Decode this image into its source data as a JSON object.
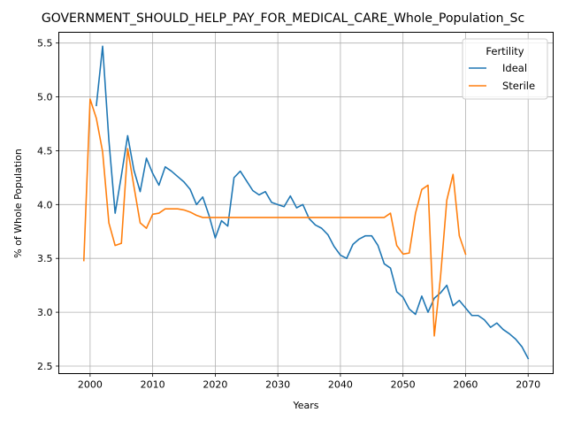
{
  "chart_data": {
    "type": "line",
    "title": "GOVERNMENT_SHOULD_HELP_PAY_FOR_MEDICAL_CARE_Whole_Population_Sc",
    "xlabel": "Years",
    "ylabel": "% of Whole Population",
    "xlim": [
      1995,
      2074
    ],
    "ylim": [
      2.43,
      5.6
    ],
    "xticks": [
      2000,
      2010,
      2020,
      2030,
      2040,
      2050,
      2060,
      2070
    ],
    "yticks": [
      2.5,
      3.0,
      3.5,
      4.0,
      4.5,
      5.0,
      5.5
    ],
    "grid": true,
    "legend": {
      "title": "Fertility",
      "placement": "top-right"
    },
    "series": [
      {
        "name": "Ideal",
        "color": "#1f77b4",
        "x": [
          2001,
          2002,
          2003,
          2004,
          2005,
          2006,
          2007,
          2008,
          2009,
          2010,
          2011,
          2012,
          2013,
          2014,
          2015,
          2016,
          2017,
          2018,
          2019,
          2020,
          2021,
          2022,
          2023,
          2024,
          2025,
          2026,
          2027,
          2028,
          2029,
          2030,
          2031,
          2032,
          2033,
          2034,
          2035,
          2036,
          2037,
          2038,
          2039,
          2040,
          2041,
          2042,
          2043,
          2044,
          2045,
          2046,
          2047,
          2048,
          2049,
          2050,
          2051,
          2052,
          2053,
          2054,
          2055,
          2056,
          2057,
          2058,
          2059,
          2060,
          2061,
          2062,
          2063,
          2064,
          2065,
          2066,
          2067,
          2068,
          2069,
          2070
        ],
        "values": [
          4.92,
          5.47,
          4.6,
          3.92,
          4.27,
          4.64,
          4.32,
          4.12,
          4.43,
          4.29,
          4.18,
          4.35,
          4.31,
          4.26,
          4.21,
          4.14,
          4.0,
          4.07,
          3.9,
          3.69,
          3.85,
          3.8,
          4.25,
          4.31,
          4.22,
          4.13,
          4.09,
          4.12,
          4.02,
          4.0,
          3.98,
          4.08,
          3.97,
          4.0,
          3.87,
          3.81,
          3.78,
          3.72,
          3.61,
          3.53,
          3.5,
          3.63,
          3.68,
          3.71,
          3.71,
          3.62,
          3.45,
          3.41,
          3.19,
          3.14,
          3.03,
          2.98,
          3.15,
          3.0,
          3.13,
          3.18,
          3.25,
          3.06,
          3.11,
          3.04,
          2.97,
          2.97,
          2.93,
          2.86,
          2.9,
          2.84,
          2.8,
          2.75,
          2.68,
          2.57
        ]
      },
      {
        "name": "Sterile",
        "color": "#ff7f0e",
        "x": [
          1999,
          2000,
          2001,
          2002,
          2003,
          2004,
          2005,
          2006,
          2007,
          2008,
          2009,
          2010,
          2011,
          2012,
          2013,
          2014,
          2015,
          2016,
          2017,
          2018,
          2019,
          2020,
          2021,
          2022,
          2023,
          2024,
          2025,
          2026,
          2027,
          2028,
          2029,
          2030,
          2031,
          2032,
          2033,
          2034,
          2035,
          2036,
          2037,
          2038,
          2039,
          2040,
          2041,
          2042,
          2043,
          2044,
          2045,
          2046,
          2047,
          2048,
          2049,
          2050,
          2051,
          2052,
          2053,
          2054,
          2055,
          2056,
          2057,
          2058,
          2059,
          2060
        ],
        "values": [
          3.48,
          4.98,
          4.8,
          4.49,
          3.83,
          3.62,
          3.64,
          4.52,
          4.17,
          3.83,
          3.78,
          3.91,
          3.92,
          3.96,
          3.96,
          3.96,
          3.95,
          3.93,
          3.9,
          3.88,
          3.88,
          3.88,
          3.88,
          3.88,
          3.88,
          3.88,
          3.88,
          3.88,
          3.88,
          3.88,
          3.88,
          3.88,
          3.88,
          3.88,
          3.88,
          3.88,
          3.88,
          3.88,
          3.88,
          3.88,
          3.88,
          3.88,
          3.88,
          3.88,
          3.88,
          3.88,
          3.88,
          3.88,
          3.88,
          3.92,
          3.62,
          3.54,
          3.55,
          3.92,
          4.14,
          4.18,
          2.78,
          3.33,
          4.04,
          4.28,
          3.71,
          3.54
        ]
      }
    ]
  }
}
